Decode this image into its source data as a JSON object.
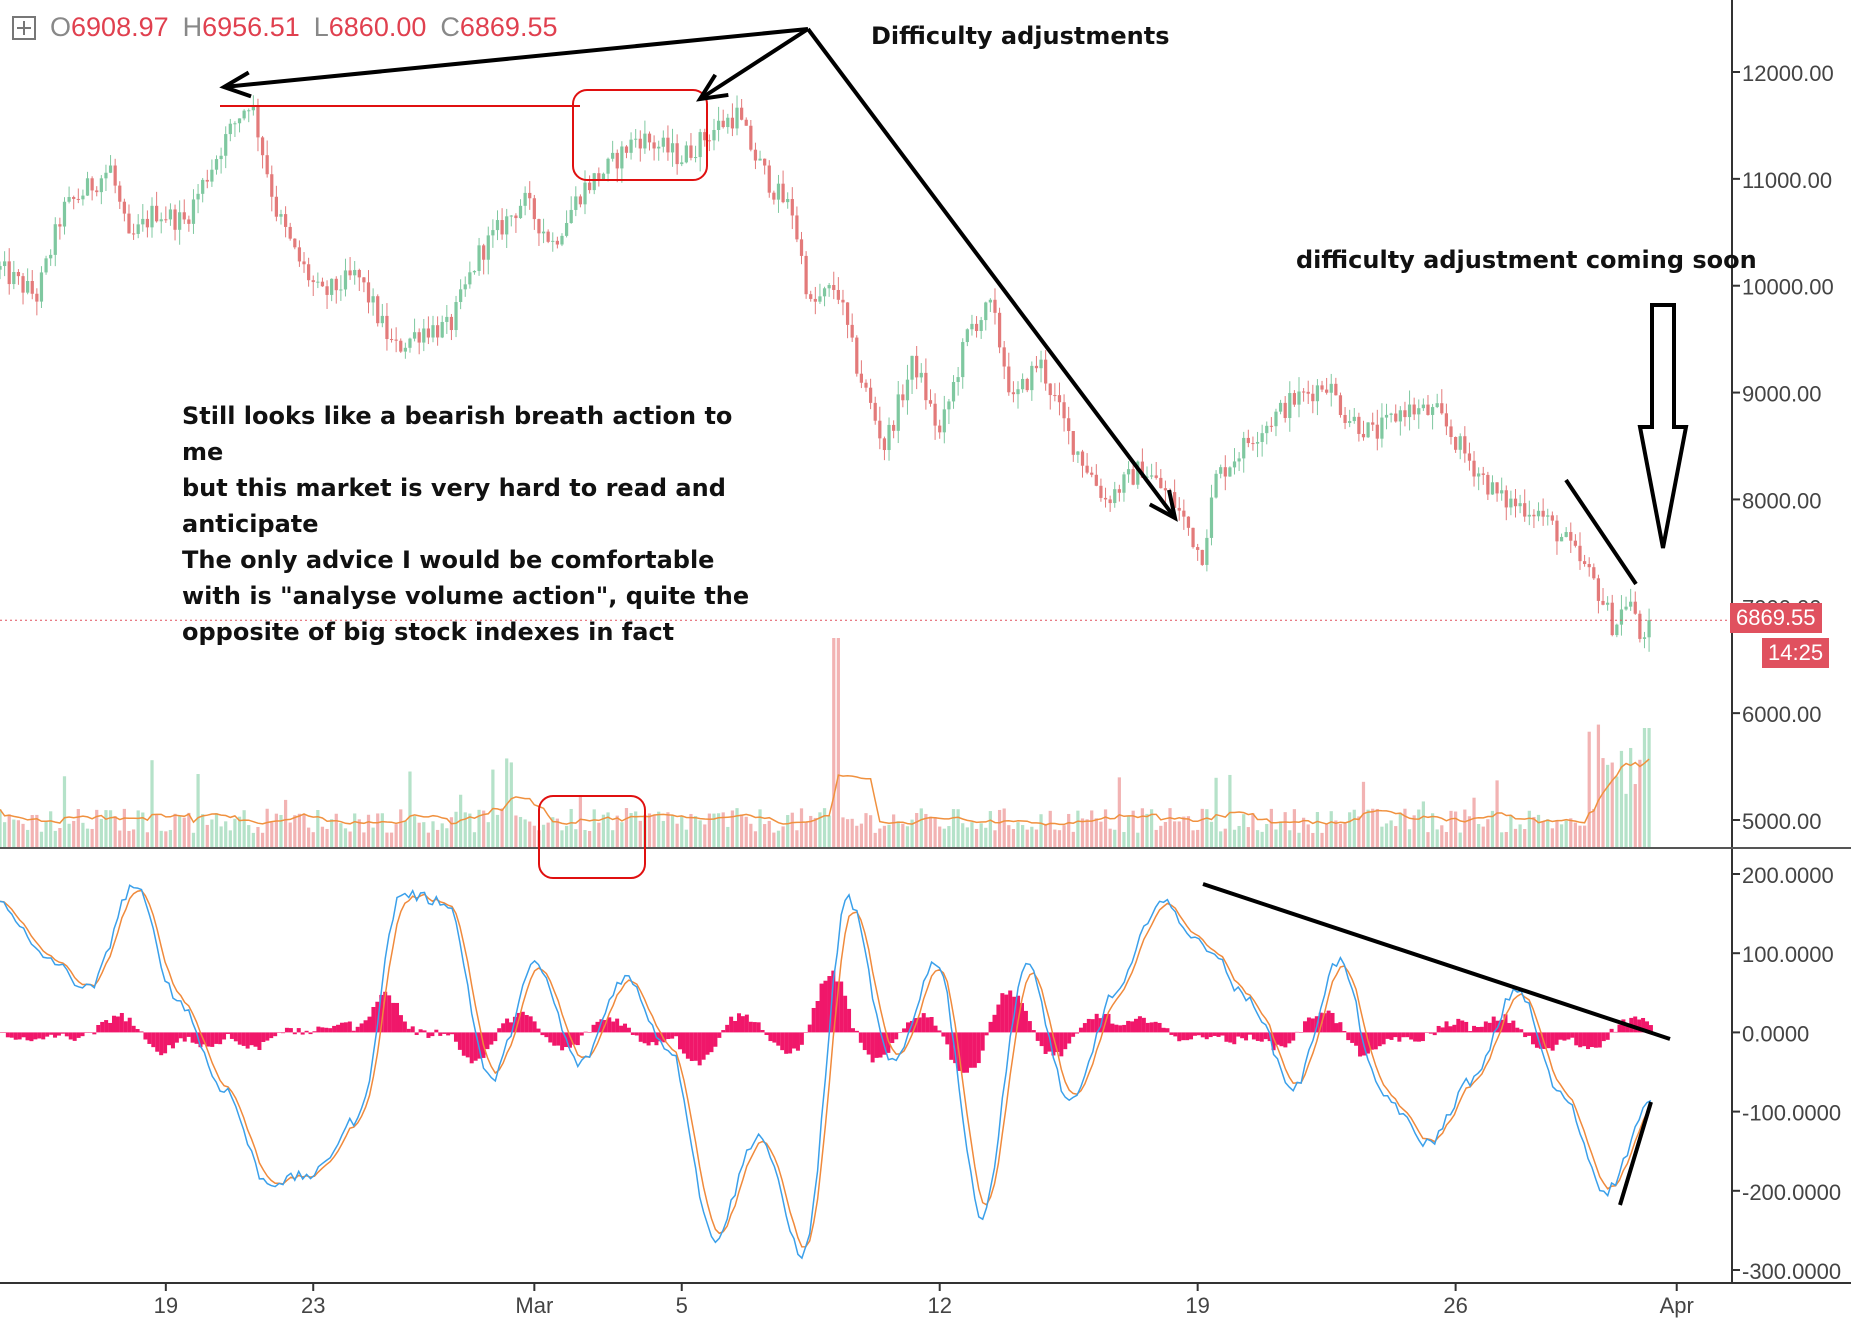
{
  "ohlc": {
    "open_label": "O",
    "open": "6908.97",
    "high_label": "H",
    "high": "6956.51",
    "low_label": "L",
    "low": "6860.00",
    "close_label": "C",
    "close": "6869.55"
  },
  "annotations": {
    "difficulty_adjustments": "Difficulty adjustments",
    "coming_soon": "difficulty adjustment coming soon",
    "main_note_lines": [
      "Still looks like a bearish breath action to",
      "me",
      "but this market is very hard to read and",
      "anticipate",
      "The only advice I would be comfortable",
      "with is \"analyse volume action\", quite the",
      "opposite of big stock indexes in fact"
    ]
  },
  "price_tag": {
    "value": "6869.55",
    "countdown": "14:25",
    "color": "#e0515f"
  },
  "colors": {
    "up": "#7fc8a0",
    "down": "#e37a7a",
    "hist": "#f0176a",
    "line1": "#3ba0ea",
    "line2": "#f08a3c",
    "annot": "#e01010"
  },
  "chart_data": [
    {
      "type": "candlestick",
      "x_tick_labels": [
        "19",
        "23",
        "Mar",
        "5",
        "12",
        "19",
        "26",
        "Apr"
      ],
      "x_tick_days": [
        -10,
        -6,
        0,
        4,
        11,
        18,
        25,
        31
      ],
      "y_tick_labels": [
        "12000.00",
        "11000.00",
        "10000.00",
        "9000.00",
        "8000.00",
        "7000.00",
        "6000.00",
        "5000.00"
      ],
      "ylim": [
        4750,
        12800
      ],
      "xlim_days": [
        -14.5,
        32.5
      ],
      "last_price": 6869.55,
      "key_points": [
        {
          "day": -14.5,
          "price": 10150
        },
        {
          "day": -13.5,
          "price": 9900
        },
        {
          "day": -12.8,
          "price": 10700
        },
        {
          "day": -11.5,
          "price": 11100
        },
        {
          "day": -11,
          "price": 10400
        },
        {
          "day": -10.3,
          "price": 10700
        },
        {
          "day": -9.5,
          "price": 10600
        },
        {
          "day": -8.5,
          "price": 11300
        },
        {
          "day": -8,
          "price": 11600
        },
        {
          "day": -7.7,
          "price": 11750
        },
        {
          "day": -7,
          "price": 10700
        },
        {
          "day": -6.5,
          "price": 10300
        },
        {
          "day": -5.8,
          "price": 9900
        },
        {
          "day": -4.8,
          "price": 10100
        },
        {
          "day": -3.8,
          "price": 9400
        },
        {
          "day": -3,
          "price": 9600
        },
        {
          "day": -2.3,
          "price": 9600
        },
        {
          "day": -1.5,
          "price": 10300
        },
        {
          "day": -0.3,
          "price": 10800
        },
        {
          "day": 0.5,
          "price": 10400
        },
        {
          "day": 1.3,
          "price": 10900
        },
        {
          "day": 2,
          "price": 11100
        },
        {
          "day": 2.8,
          "price": 11400
        },
        {
          "day": 4,
          "price": 11200
        },
        {
          "day": 5,
          "price": 11500
        },
        {
          "day": 5.5,
          "price": 11600
        },
        {
          "day": 6,
          "price": 11200
        },
        {
          "day": 6.5,
          "price": 10900
        },
        {
          "day": 7,
          "price": 10700
        },
        {
          "day": 7.5,
          "price": 9800
        },
        {
          "day": 8.2,
          "price": 10000
        },
        {
          "day": 8.7,
          "price": 9300
        },
        {
          "day": 9.5,
          "price": 8500
        },
        {
          "day": 10.3,
          "price": 9300
        },
        {
          "day": 11,
          "price": 8600
        },
        {
          "day": 11.8,
          "price": 9600
        },
        {
          "day": 12.4,
          "price": 9800
        },
        {
          "day": 13,
          "price": 8900
        },
        {
          "day": 13.7,
          "price": 9300
        },
        {
          "day": 14.5,
          "price": 8600
        },
        {
          "day": 15.5,
          "price": 8000
        },
        {
          "day": 16.5,
          "price": 8300
        },
        {
          "day": 17.3,
          "price": 8000
        },
        {
          "day": 17.8,
          "price": 7700
        },
        {
          "day": 18.1,
          "price": 7450
        },
        {
          "day": 18.5,
          "price": 8200
        },
        {
          "day": 19.5,
          "price": 8600
        },
        {
          "day": 20.5,
          "price": 8900
        },
        {
          "day": 21.5,
          "price": 9100
        },
        {
          "day": 22,
          "price": 8800
        },
        {
          "day": 22.8,
          "price": 8600
        },
        {
          "day": 23.6,
          "price": 8850
        },
        {
          "day": 24.5,
          "price": 8800
        },
        {
          "day": 25.3,
          "price": 8400
        },
        {
          "day": 26.2,
          "price": 8000
        },
        {
          "day": 27.2,
          "price": 7900
        },
        {
          "day": 28,
          "price": 7600
        },
        {
          "day": 28.8,
          "price": 7200
        },
        {
          "day": 29.3,
          "price": 6800
        },
        {
          "day": 29.7,
          "price": 7100
        },
        {
          "day": 30,
          "price": 6700
        },
        {
          "day": 30.3,
          "price": 6869.55
        }
      ]
    },
    {
      "type": "oscillator",
      "y_tick_labels": [
        "200.0000",
        "100.0000",
        "0.0000",
        "-100.0000",
        "-200.0000",
        "-300.0000"
      ],
      "ylim": [
        -315,
        215
      ],
      "series": [
        {
          "values": [
            165,
            95,
            55,
            185,
            40,
            -70,
            -190,
            -180,
            -110,
            175,
            165,
            -60,
            85,
            -40,
            70,
            -20,
            -260,
            -130,
            -280,
            170,
            -40,
            90,
            -230,
            85,
            -90,
            50,
            165,
            110,
            40,
            -70,
            90,
            -80,
            -140,
            -60,
            55,
            -80,
            -200,
            -90
          ]
        }
      ]
    }
  ]
}
